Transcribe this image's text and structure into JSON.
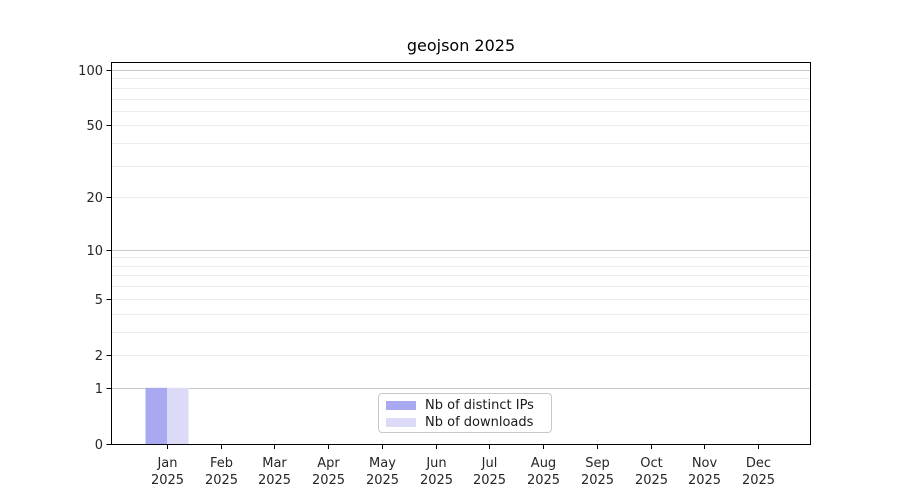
{
  "chart_data": {
    "type": "bar",
    "title": "geojson 2025",
    "categories": [
      "Jan",
      "Feb",
      "Mar",
      "Apr",
      "May",
      "Jun",
      "Jul",
      "Aug",
      "Sep",
      "Oct",
      "Nov",
      "Dec"
    ],
    "category_year": "2025",
    "series": [
      {
        "name": "Nb of distinct IPs",
        "color": "#a9a9f1",
        "values": [
          1,
          0,
          0,
          0,
          0,
          0,
          0,
          0,
          0,
          0,
          0,
          0
        ]
      },
      {
        "name": "Nb of downloads",
        "color": "#dbdbf8",
        "values": [
          1,
          0,
          0,
          0,
          0,
          0,
          0,
          0,
          0,
          0,
          0,
          0
        ]
      }
    ],
    "yscale": "log1p",
    "ylim": [
      0,
      110
    ],
    "y_ticks": [
      0,
      1,
      2,
      5,
      10,
      20,
      50,
      100
    ],
    "y_major_grid_values": [
      1,
      10,
      100
    ],
    "y_minor_grid_values": [
      2,
      3,
      4,
      5,
      6,
      7,
      8,
      9,
      20,
      30,
      40,
      50,
      60,
      70,
      80,
      90
    ],
    "grid": true,
    "legend_position": "lower center"
  },
  "colors": {
    "major_grid": "#c8c8c8",
    "minor_grid": "#ececec",
    "spine": "#000000",
    "tick_text": "#262626",
    "legend_border": "#c9c9c9"
  }
}
